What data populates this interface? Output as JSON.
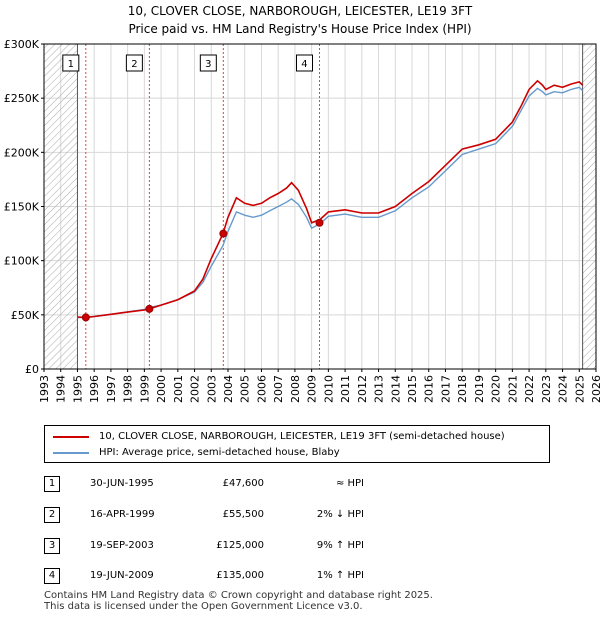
{
  "title_line1": "10, CLOVER CLOSE, NARBOROUGH, LEICESTER, LE19 3FT",
  "title_line2": "Price paid vs. HM Land Registry's House Price Index (HPI)",
  "colors": {
    "property": "#cc0000",
    "hpi": "#6699cc",
    "grid": "#d8d8d8",
    "hatch": "#aaaaaa",
    "vline": "#dd4444"
  },
  "chart_data": {
    "type": "line",
    "title": "Price paid vs. HM Land Registry's House Price Index (HPI)",
    "xlim": [
      1993,
      2026
    ],
    "ylim": [
      0,
      300000
    ],
    "x_ticks": [
      1993,
      1994,
      1995,
      1996,
      1997,
      1998,
      1999,
      2000,
      2001,
      2002,
      2003,
      2004,
      2005,
      2006,
      2007,
      2008,
      2009,
      2010,
      2011,
      2012,
      2013,
      2014,
      2015,
      2016,
      2017,
      2018,
      2019,
      2020,
      2021,
      2022,
      2023,
      2024,
      2025,
      2026
    ],
    "y_ticks": [
      0,
      50000,
      100000,
      150000,
      200000,
      250000,
      300000
    ],
    "y_tick_labels": [
      "£0",
      "£50K",
      "£100K",
      "£150K",
      "£200K",
      "£250K",
      "£300K"
    ],
    "hatched_ranges": [
      [
        1993,
        1995.0
      ],
      [
        2025.2,
        2026
      ]
    ],
    "series": [
      {
        "name": "10, CLOVER CLOSE, NARBOROUGH, LEICESTER, LE19 3FT (semi-detached house)",
        "x": [
          1995.0,
          1995.5,
          1996.0,
          1997.0,
          1998.0,
          1999.0,
          1999.3,
          2000.0,
          2001.0,
          2002.0,
          2002.5,
          2003.0,
          2003.7,
          2004.0,
          2004.5,
          2005.0,
          2005.5,
          2006.0,
          2006.5,
          2007.0,
          2007.5,
          2007.8,
          2008.2,
          2008.7,
          2009.0,
          2009.5,
          2010.0,
          2011.0,
          2012.0,
          2013.0,
          2014.0,
          2015.0,
          2016.0,
          2017.0,
          2018.0,
          2019.0,
          2020.0,
          2020.5,
          2021.0,
          2021.5,
          2022.0,
          2022.5,
          2022.8,
          2023.0,
          2023.5,
          2024.0,
          2024.5,
          2025.0,
          2025.2
        ],
        "values": [
          48000,
          47600,
          48500,
          50500,
          52500,
          54500,
          55500,
          59000,
          64000,
          72000,
          83000,
          102000,
          125000,
          140000,
          158000,
          153000,
          151000,
          153000,
          158000,
          162000,
          167000,
          172000,
          165000,
          148000,
          135000,
          138000,
          145000,
          147000,
          144000,
          144000,
          150000,
          162000,
          173000,
          188000,
          203000,
          207000,
          212000,
          220000,
          228000,
          242000,
          258000,
          266000,
          262000,
          258000,
          262000,
          260000,
          263000,
          265000,
          262000
        ]
      },
      {
        "name": "HPI: Average price, semi-detached house, Blaby",
        "x": [
          1995.0,
          1995.5,
          1996.0,
          1997.0,
          1998.0,
          1999.0,
          1999.3,
          2000.0,
          2001.0,
          2002.0,
          2002.5,
          2003.0,
          2003.7,
          2004.0,
          2004.5,
          2005.0,
          2005.5,
          2006.0,
          2006.5,
          2007.0,
          2007.5,
          2007.8,
          2008.2,
          2008.7,
          2009.0,
          2009.5,
          2010.0,
          2011.0,
          2012.0,
          2013.0,
          2014.0,
          2015.0,
          2016.0,
          2017.0,
          2018.0,
          2019.0,
          2020.0,
          2020.5,
          2021.0,
          2021.5,
          2022.0,
          2022.5,
          2022.8,
          2023.0,
          2023.5,
          2024.0,
          2024.5,
          2025.0,
          2025.2
        ],
        "values": [
          47500,
          47600,
          48500,
          50500,
          52800,
          55000,
          56700,
          59000,
          64000,
          71000,
          80000,
          95000,
          114000,
          127000,
          145000,
          142000,
          140000,
          142000,
          146000,
          150000,
          154000,
          157000,
          152000,
          140000,
          130000,
          134000,
          141000,
          143000,
          140000,
          140000,
          146000,
          158000,
          168000,
          183000,
          198000,
          203000,
          208000,
          216000,
          224000,
          238000,
          252000,
          259000,
          256000,
          253000,
          256000,
          255000,
          258000,
          260000,
          257000
        ]
      }
    ],
    "markers": [
      {
        "label": "1",
        "x": 1995.5,
        "y": 47600
      },
      {
        "label": "2",
        "x": 1999.3,
        "y": 55500
      },
      {
        "label": "3",
        "x": 2003.72,
        "y": 125000
      },
      {
        "label": "4",
        "x": 2009.47,
        "y": 135000
      }
    ]
  },
  "legend": {
    "property_label": "10, CLOVER CLOSE, NARBOROUGH, LEICESTER, LE19 3FT (semi-detached house)",
    "hpi_label": "HPI: Average price, semi-detached house, Blaby"
  },
  "transactions": [
    {
      "num": "1",
      "date": "30-JUN-1995",
      "price": "£47,600",
      "hpi": "≈ HPI"
    },
    {
      "num": "2",
      "date": "16-APR-1999",
      "price": "£55,500",
      "hpi": "2% ↓ HPI"
    },
    {
      "num": "3",
      "date": "19-SEP-2003",
      "price": "£125,000",
      "hpi": "9% ↑ HPI"
    },
    {
      "num": "4",
      "date": "19-JUN-2009",
      "price": "£135,000",
      "hpi": "1% ↑ HPI"
    }
  ],
  "footer": {
    "line1": "Contains HM Land Registry data © Crown copyright and database right 2025.",
    "line2": "This data is licensed under the Open Government Licence v3.0."
  }
}
